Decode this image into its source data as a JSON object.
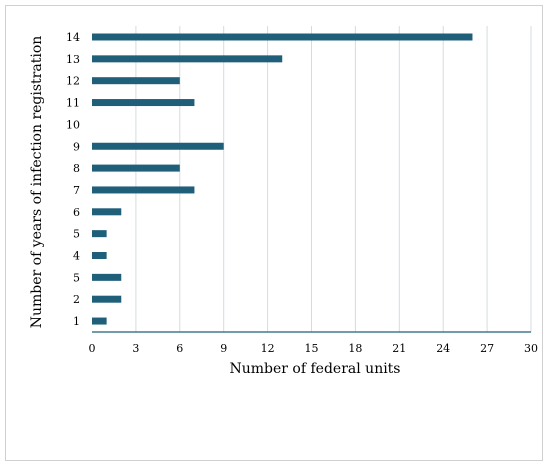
{
  "chart_data": {
    "type": "bar",
    "orientation": "horizontal",
    "title": "",
    "xlabel": "Number of federal units",
    "ylabel": "Number of years of infection registration",
    "categories": [
      "14",
      "13",
      "12",
      "11",
      "10",
      "9",
      "8",
      "7",
      "6",
      "5",
      "4",
      "5",
      "2",
      "1"
    ],
    "values": [
      26,
      13,
      6,
      7,
      0,
      9,
      6,
      7,
      2,
      1,
      1,
      2,
      2,
      1
    ],
    "xlim": [
      0,
      30
    ],
    "xticks": [
      "0",
      "3",
      "6",
      "9",
      "12",
      "15",
      "18",
      "21",
      "24",
      "27",
      "30"
    ],
    "grid": "vertical",
    "legend": "none",
    "bar_color": "#1f5f7a",
    "grid_color": "#d4dce0",
    "axis_color": "#1f5f7a"
  }
}
